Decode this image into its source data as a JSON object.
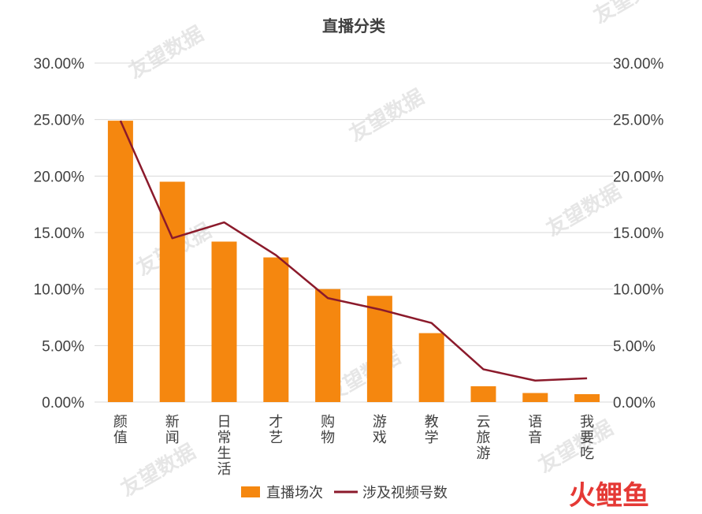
{
  "chart_data": {
    "type": "bar+line",
    "title": "直播分类",
    "categories": [
      "颜值",
      "新闻",
      "日常生活",
      "才艺",
      "购物",
      "游戏",
      "教学",
      "云旅游",
      "语音",
      "我要吃"
    ],
    "series": [
      {
        "name": "直播场次",
        "type": "bar",
        "axis": "left",
        "color": "#F5870F",
        "values": [
          24.9,
          19.5,
          14.2,
          12.8,
          10.0,
          9.4,
          6.1,
          1.4,
          0.8,
          0.7
        ]
      },
      {
        "name": "涉及视频号数",
        "type": "line",
        "axis": "right",
        "color": "#8B1A2B",
        "values": [
          24.9,
          14.5,
          15.9,
          13.0,
          9.2,
          8.2,
          7.0,
          2.9,
          1.9,
          2.1
        ]
      }
    ],
    "y_left": {
      "min": 0,
      "max": 30,
      "step": 5,
      "format": "percent",
      "ticks": [
        "0.00%",
        "5.00%",
        "10.00%",
        "15.00%",
        "20.00%",
        "25.00%",
        "30.00%"
      ]
    },
    "y_right": {
      "min": 0,
      "max": 30,
      "step": 5,
      "format": "percent",
      "ticks": [
        "0.00%",
        "5.00%",
        "10.00%",
        "15.00%",
        "20.00%",
        "25.00%",
        "30.00%"
      ]
    },
    "grid": true,
    "legend": "bottom"
  },
  "branding": {
    "logo_text": "火鲤鱼",
    "logo_color": "#e53935",
    "watermark_text": "友望数据"
  }
}
